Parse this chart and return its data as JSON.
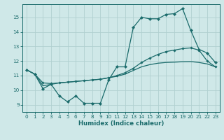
{
  "title": "",
  "xlabel": "Humidex (Indice chaleur)",
  "xlim": [
    -0.5,
    23.5
  ],
  "ylim": [
    8.5,
    15.9
  ],
  "yticks": [
    9,
    10,
    11,
    12,
    13,
    14,
    15
  ],
  "xticks": [
    0,
    1,
    2,
    3,
    4,
    5,
    6,
    7,
    8,
    9,
    10,
    11,
    12,
    13,
    14,
    15,
    16,
    17,
    18,
    19,
    20,
    21,
    22,
    23
  ],
  "bg_color": "#cfe8e8",
  "line_color": "#1a6b6b",
  "grid_color": "#b0d0d0",
  "series1_x": [
    0,
    1,
    2,
    3,
    4,
    5,
    6,
    7,
    8,
    9,
    10,
    11,
    12,
    13,
    14,
    15,
    16,
    17,
    18,
    19,
    20,
    21,
    22,
    23
  ],
  "series1_y": [
    11.4,
    11.1,
    10.1,
    10.4,
    9.6,
    9.2,
    9.6,
    9.1,
    9.1,
    9.1,
    10.7,
    11.6,
    11.6,
    14.3,
    15.0,
    14.9,
    14.9,
    15.2,
    15.25,
    15.6,
    14.1,
    12.8,
    12.55,
    11.9
  ],
  "series2_x": [
    0,
    1,
    2,
    3,
    4,
    5,
    6,
    7,
    8,
    9,
    10,
    11,
    12,
    13,
    14,
    15,
    16,
    17,
    18,
    19,
    20,
    21,
    22,
    23
  ],
  "series2_y": [
    11.4,
    11.1,
    10.5,
    10.45,
    10.5,
    10.55,
    10.6,
    10.65,
    10.7,
    10.75,
    10.85,
    11.0,
    11.2,
    11.5,
    11.9,
    12.2,
    12.45,
    12.65,
    12.75,
    12.85,
    12.9,
    12.75,
    12.0,
    11.6
  ],
  "series3_x": [
    0,
    1,
    2,
    3,
    4,
    5,
    6,
    7,
    8,
    9,
    10,
    11,
    12,
    13,
    14,
    15,
    16,
    17,
    18,
    19,
    20,
    21,
    22,
    23
  ],
  "series3_y": [
    11.4,
    11.1,
    10.3,
    10.4,
    10.5,
    10.55,
    10.6,
    10.65,
    10.7,
    10.75,
    10.85,
    10.95,
    11.1,
    11.35,
    11.6,
    11.75,
    11.85,
    11.9,
    11.92,
    11.95,
    11.96,
    11.9,
    11.8,
    11.6
  ]
}
